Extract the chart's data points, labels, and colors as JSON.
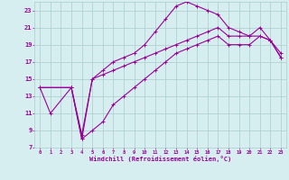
{
  "xlabel": "Windchill (Refroidissement éolien,°C)",
  "bg_color": "#d6eef0",
  "grid_color": "#aacccc",
  "line_color": "#990099",
  "xlim": [
    -0.5,
    23.5
  ],
  "ylim": [
    7,
    24
  ],
  "xticks": [
    0,
    1,
    2,
    3,
    4,
    5,
    6,
    7,
    8,
    9,
    10,
    11,
    12,
    13,
    14,
    15,
    16,
    17,
    18,
    19,
    20,
    21,
    22,
    23
  ],
  "yticks": [
    7,
    9,
    11,
    13,
    15,
    17,
    19,
    21,
    23
  ],
  "line1_x": [
    0,
    1,
    3,
    4,
    5,
    6,
    7,
    8,
    9,
    10,
    11,
    12,
    13,
    14,
    15,
    16,
    17,
    18,
    19,
    20,
    21,
    22,
    23
  ],
  "line1_y": [
    14,
    11,
    14,
    8,
    15,
    16,
    17,
    17.5,
    18,
    19,
    20.5,
    22,
    23.5,
    24,
    23.5,
    23,
    22.5,
    21,
    20.5,
    20,
    21,
    19.5,
    17.5
  ],
  "line2_x": [
    0,
    3,
    4,
    5,
    6,
    7,
    8,
    9,
    10,
    11,
    12,
    13,
    14,
    15,
    16,
    17,
    18,
    19,
    20,
    21,
    22,
    23
  ],
  "line2_y": [
    14,
    14,
    8.5,
    15,
    15.5,
    16,
    16.5,
    17,
    17.5,
    18,
    18.5,
    19,
    19.5,
    20,
    20.5,
    21,
    20,
    20,
    20,
    20,
    19.5,
    18
  ],
  "line3_x": [
    0,
    3,
    4,
    5,
    6,
    7,
    8,
    9,
    10,
    11,
    12,
    13,
    14,
    15,
    16,
    17,
    18,
    19,
    20,
    21,
    22,
    23
  ],
  "line3_y": [
    14,
    14,
    8,
    9,
    10,
    12,
    13,
    14,
    15,
    16,
    17,
    18,
    18.5,
    19,
    19.5,
    20,
    19,
    19,
    19,
    20,
    19.5,
    17.5
  ]
}
